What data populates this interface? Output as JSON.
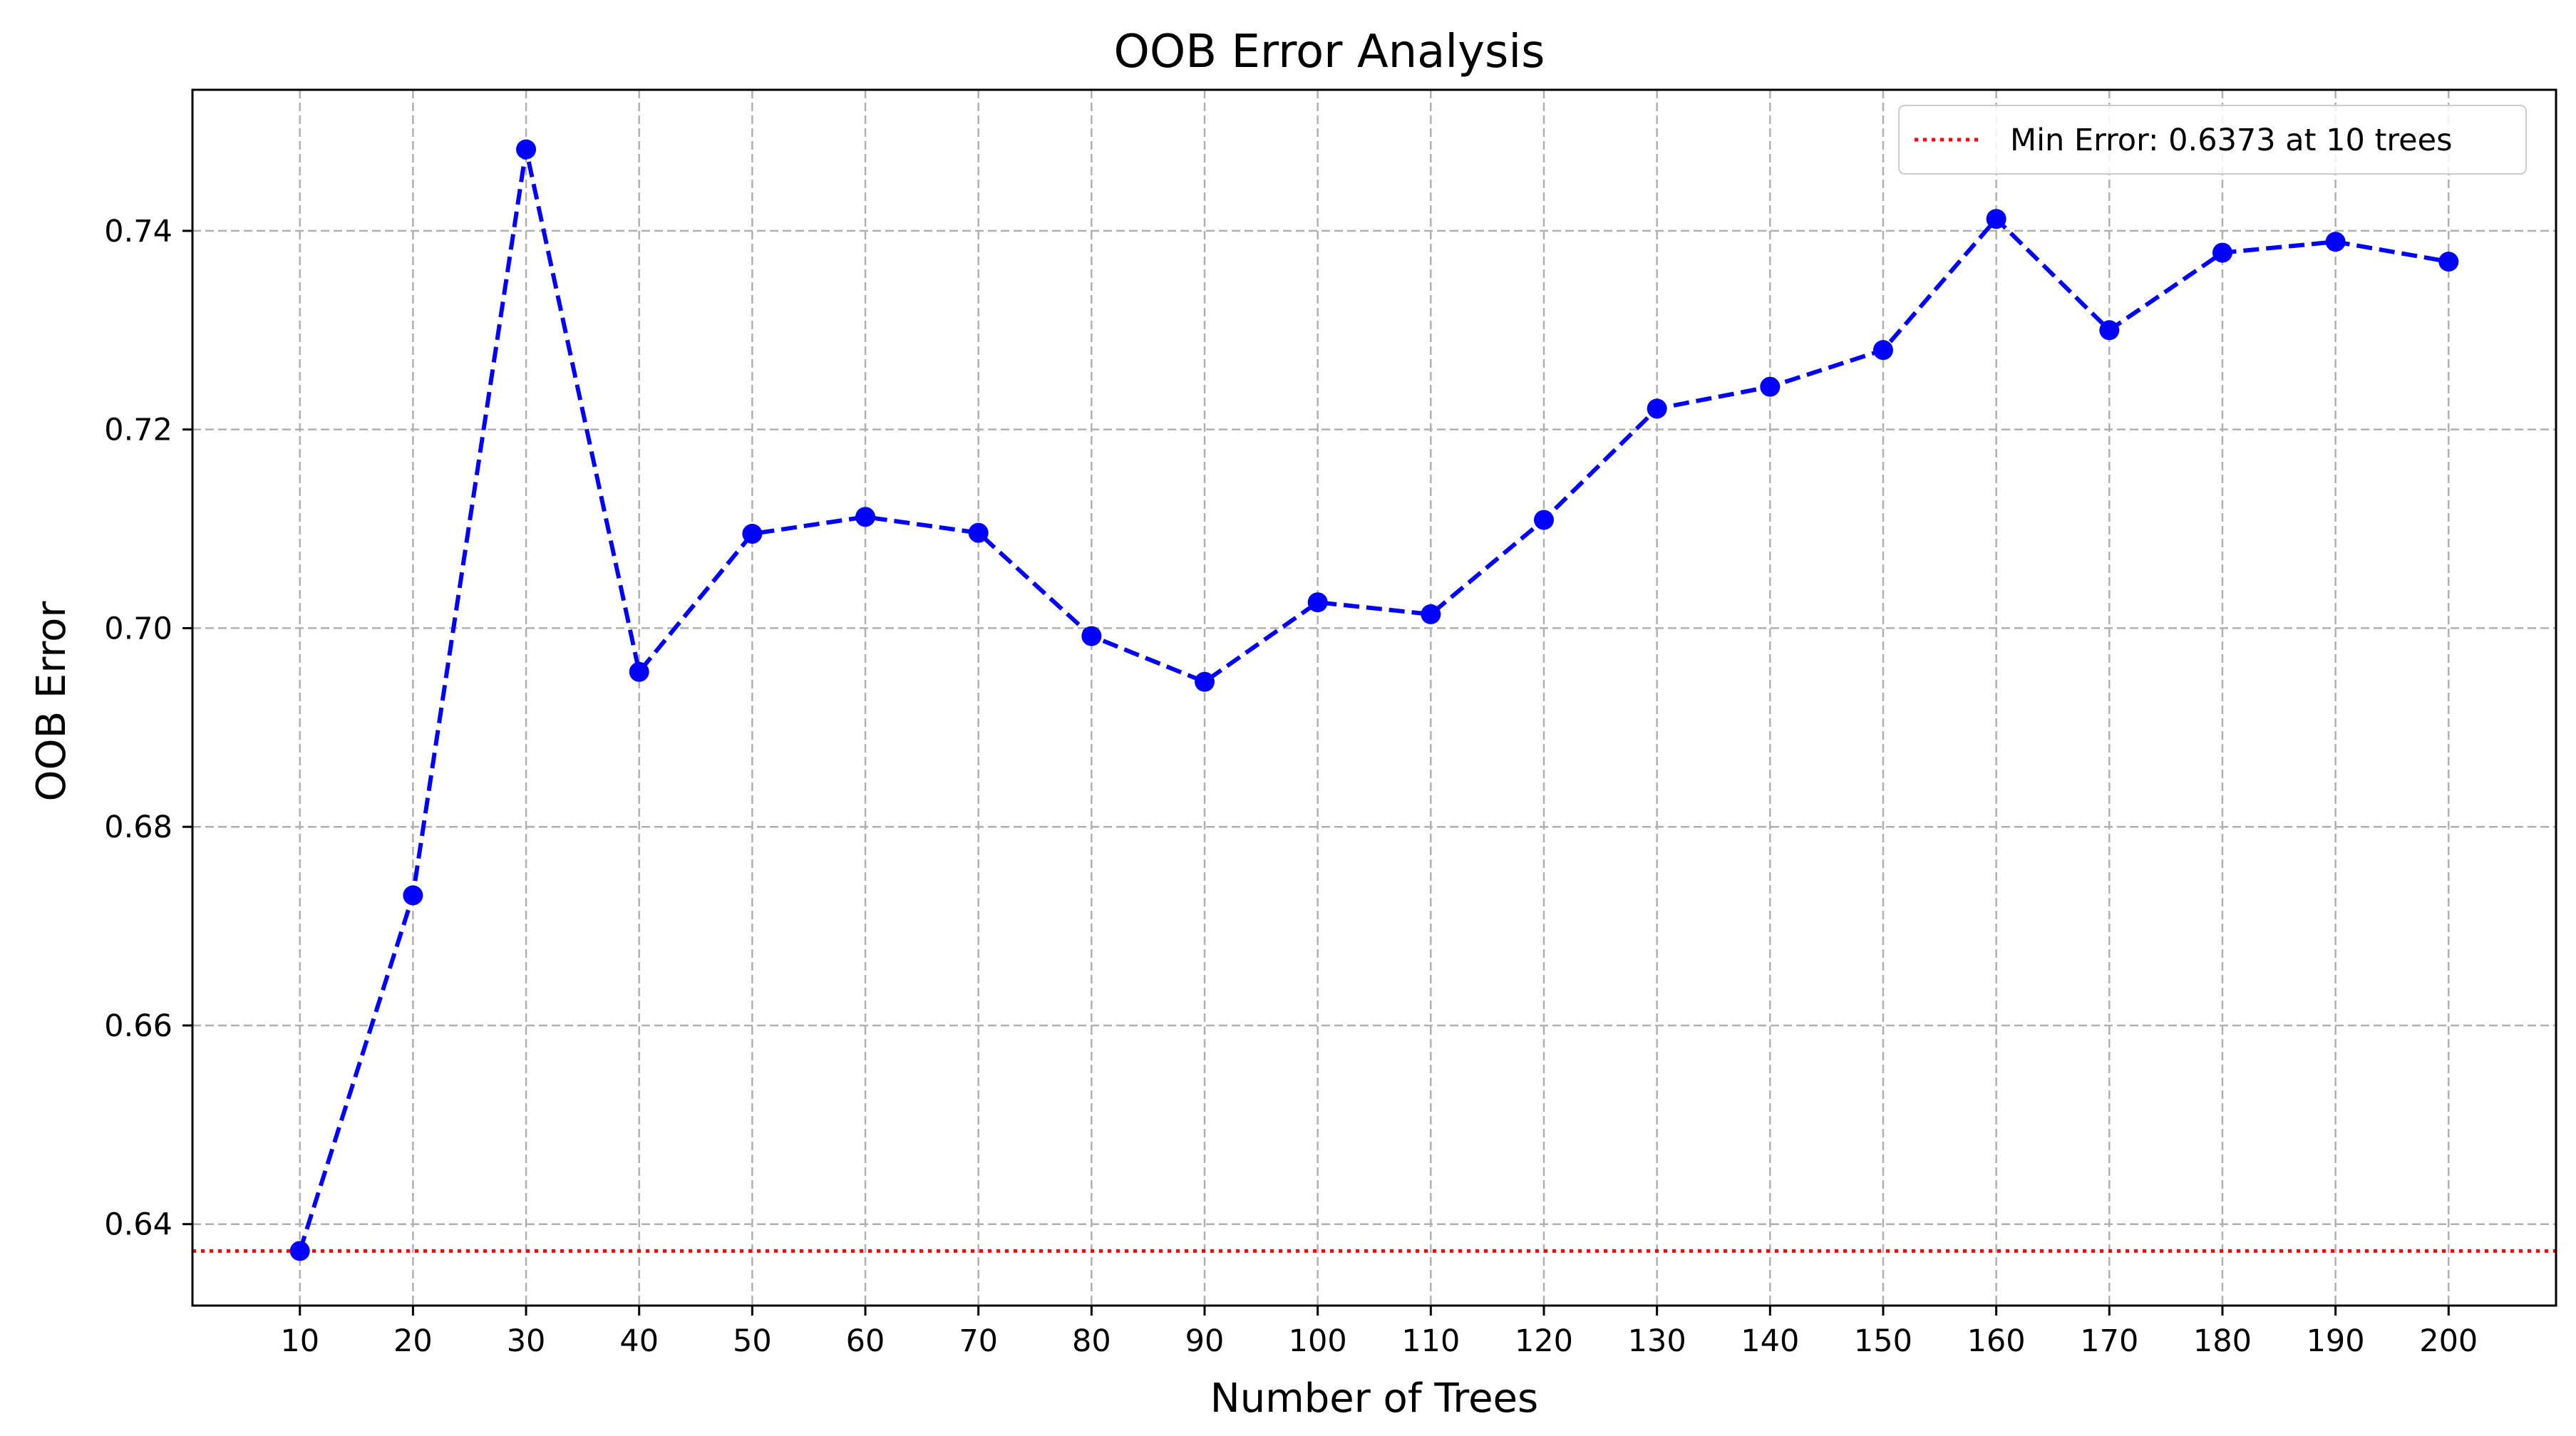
{
  "chart_data": {
    "type": "line",
    "title": "OOB Error Analysis",
    "xlabel": "Number of Trees",
    "ylabel": "OOB Error",
    "x": [
      10,
      20,
      30,
      40,
      50,
      60,
      70,
      80,
      90,
      100,
      110,
      120,
      130,
      140,
      150,
      160,
      170,
      180,
      190,
      200
    ],
    "x_ticks": [
      "10",
      "20",
      "30",
      "40",
      "50",
      "60",
      "70",
      "80",
      "90",
      "100",
      "110",
      "120",
      "130",
      "140",
      "150",
      "160",
      "170",
      "180",
      "190",
      "200"
    ],
    "y_ticks": [
      {
        "value": 0.64,
        "label": "0.64"
      },
      {
        "value": 0.66,
        "label": "0.66"
      },
      {
        "value": 0.68,
        "label": "0.68"
      },
      {
        "value": 0.7,
        "label": "0.70"
      },
      {
        "value": 0.72,
        "label": "0.72"
      },
      {
        "value": 0.74,
        "label": "0.74"
      }
    ],
    "xlim": [
      0.5,
      209.5
    ],
    "ylim": [
      0.6318,
      0.7542
    ],
    "grid": true,
    "legend_position": "top-right",
    "series": [
      {
        "values": [
          0.6373,
          0.6731,
          0.7482,
          0.6956,
          0.7095,
          0.7112,
          0.7096,
          0.6992,
          0.6946,
          0.7026,
          0.7014,
          0.7109,
          0.7221,
          0.7243,
          0.728,
          0.7412,
          0.73,
          0.7378,
          0.7389,
          0.7369
        ],
        "color": "#0000ff",
        "line_style": "dashed",
        "marker": "circle"
      }
    ],
    "reference_lines": [
      {
        "type": "horizontal",
        "y": 0.6373,
        "color": "#ff0000",
        "line_style": "dotted",
        "label": "Min Error: 0.6373 at 10 trees"
      }
    ],
    "colors": {
      "grid": "#b0b0b0",
      "axes": "#000000",
      "legend_border": "#cccccc"
    }
  }
}
